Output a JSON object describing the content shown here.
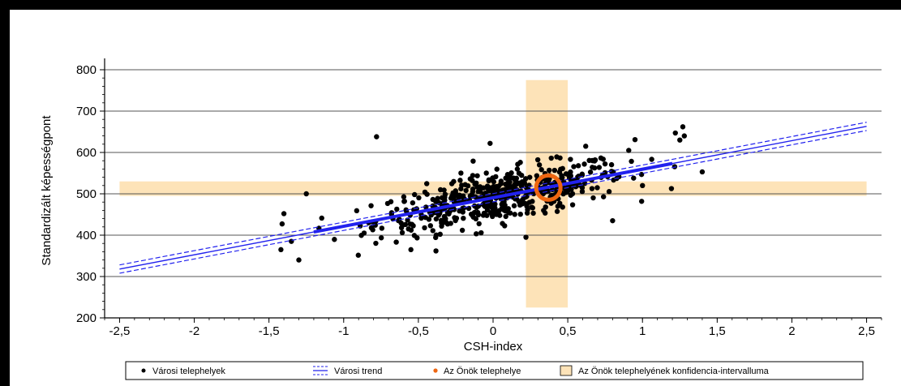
{
  "chart_data": {
    "type": "scatter",
    "xlabel": "CSH-index",
    "ylabel": "Standardizált képességpont",
    "xlim": [
      -2.6,
      2.6
    ],
    "ylim": [
      200,
      820
    ],
    "x_ticks": [
      "-2,5",
      "-2",
      "-1,5",
      "-1",
      "-0,5",
      "0",
      "0,5",
      "1",
      "1,5",
      "2",
      "2,5"
    ],
    "y_ticks": [
      "200",
      "300",
      "400",
      "500",
      "600",
      "700",
      "800"
    ],
    "grid": "horizontal",
    "legend_position": "bottom",
    "legend": [
      {
        "key": "points",
        "label": "Városi telephelyek"
      },
      {
        "key": "trend",
        "label": "Városi trend"
      },
      {
        "key": "own",
        "label": "Az Önök telephelye"
      },
      {
        "key": "ci",
        "label": "Az Önök telephelyének konfidencia-intervalluma"
      }
    ],
    "trend": {
      "x": [
        -2.5,
        2.5
      ],
      "y": [
        318,
        663
      ],
      "ci_width": 10
    },
    "own_site": {
      "x": 0.37,
      "y": 515
    },
    "confidence_interval": {
      "x_range": [
        0.22,
        0.5
      ],
      "y_range": [
        495,
        530
      ],
      "x_span": [
        -2.5,
        2.5
      ],
      "y_span": [
        225,
        775
      ]
    },
    "outliers": [
      {
        "x": -0.78,
        "y": 638
      },
      {
        "x": -0.02,
        "y": 622
      },
      {
        "x": 1.22,
        "y": 647
      },
      {
        "x": 1.27,
        "y": 662
      },
      {
        "x": 1.28,
        "y": 640
      },
      {
        "x": 1.25,
        "y": 630
      },
      {
        "x": 0.95,
        "y": 631
      },
      {
        "x": 0.62,
        "y": 615
      },
      {
        "x": 0.8,
        "y": 435
      },
      {
        "x": -1.4,
        "y": 452
      },
      {
        "x": -1.3,
        "y": 340
      },
      {
        "x": -1.35,
        "y": 385
      },
      {
        "x": -1.25,
        "y": 500
      },
      {
        "x": -1.42,
        "y": 365
      },
      {
        "x": -0.55,
        "y": 365
      },
      {
        "x": 0.22,
        "y": 395
      },
      {
        "x": 1.4,
        "y": 553
      },
      {
        "x": 1.0,
        "y": 520
      }
    ],
    "scatter_points": {
      "count": 520,
      "x_range": [
        -1.42,
        1.42
      ],
      "intercept": 490,
      "slope": 69,
      "spread": 30
    },
    "colors": {
      "points": "#000000",
      "trend": "#2222ee",
      "own": "#ee6611",
      "ci": "#fde3b8",
      "grid": "#555555"
    }
  }
}
